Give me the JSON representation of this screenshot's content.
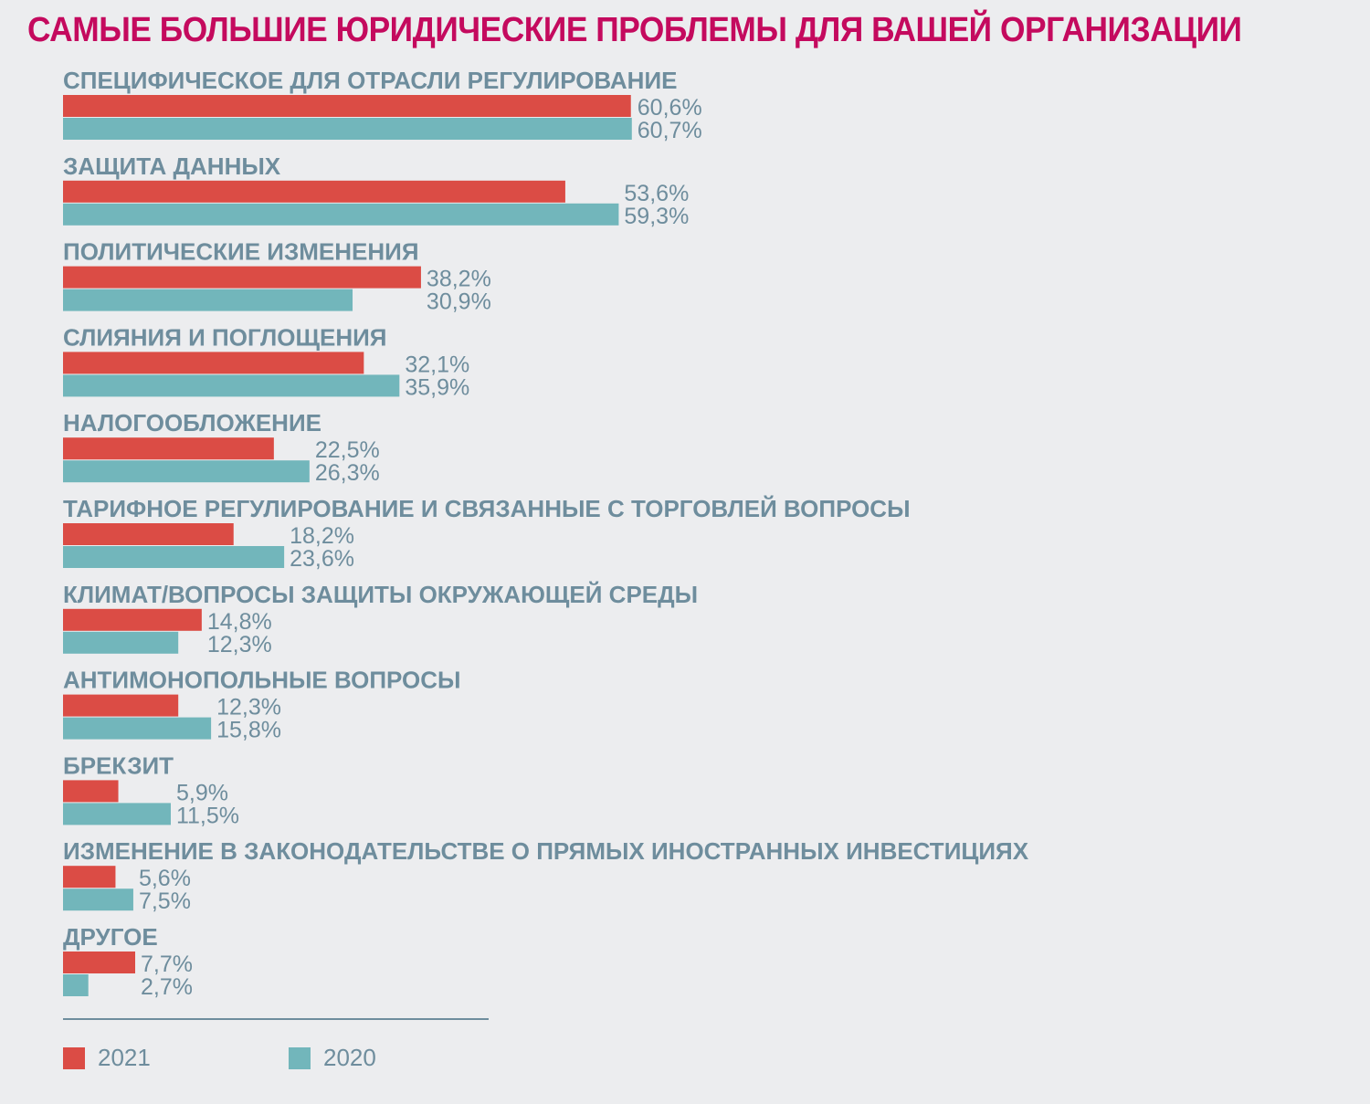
{
  "chart_data": {
    "type": "bar",
    "orientation": "horizontal",
    "title": "САМЫЕ БОЛЬШИЕ ЮРИДИЧЕСКИЕ ПРОБЛЕМЫ ДЛЯ ВАШЕЙ ОРГАНИЗАЦИИ",
    "xlabel": "",
    "ylabel": "",
    "unit": "%",
    "xlim": [
      0,
      70
    ],
    "grid": false,
    "legend_position": "bottom-left",
    "categories": [
      "СПЕЦИФИЧЕСКОЕ ДЛЯ ОТРАСЛИ РЕГУЛИРОВАНИЕ",
      "ЗАЩИТА ДАННЫХ",
      "ПОЛИТИЧЕСКИЕ ИЗМЕНЕНИЯ",
      "СЛИЯНИЯ И ПОГЛОЩЕНИЯ",
      "НАЛОГООБЛОЖЕНИЕ",
      "ТАРИФНОЕ РЕГУЛИРОВАНИЕ И СВЯЗАННЫЕ С ТОРГОВЛЕЙ ВОПРОСЫ",
      "КЛИМАТ/ВОПРОСЫ ЗАЩИТЫ ОКРУЖАЮЩЕЙ СРЕДЫ",
      "АНТИМОНОПОЛЬНЫЕ ВОПРОСЫ",
      "БРЕКЗИТ",
      "ИЗМЕНЕНИЕ В ЗАКОНОДАТЕЛЬСТВЕ О ПРЯМЫХ ИНОСТРАННЫХ ИНВЕСТИЦИЯХ",
      "ДРУГОЕ"
    ],
    "series": [
      {
        "name": "2021",
        "color": "#DB4C45",
        "values": [
          60.6,
          53.6,
          38.2,
          32.1,
          22.5,
          18.2,
          14.8,
          12.3,
          5.9,
          5.6,
          7.7
        ],
        "labels": [
          "60,6%",
          "53,6%",
          "38,2%",
          "32,1%",
          "22,5%",
          "18,2%",
          "14,8%",
          "12,3%",
          "5,9%",
          "5,6%",
          "7,7%"
        ]
      },
      {
        "name": "2020",
        "color": "#72B6BB",
        "values": [
          60.7,
          59.3,
          30.9,
          35.9,
          26.3,
          23.6,
          12.3,
          15.8,
          11.5,
          7.5,
          2.7
        ],
        "labels": [
          "60,7%",
          "59,3%",
          "30,9%",
          "35,9%",
          "26,3%",
          "23,6%",
          "12,3%",
          "15,8%",
          "11,5%",
          "7,5%",
          "2,7%"
        ]
      }
    ]
  },
  "legend": [
    {
      "label": "2021",
      "color": "#DB4C45"
    },
    {
      "label": "2020",
      "color": "#72B6BB"
    }
  ],
  "colors": {
    "title": "#C40A5E",
    "text": "#6E8D9D",
    "background": "#ECEDEF"
  }
}
